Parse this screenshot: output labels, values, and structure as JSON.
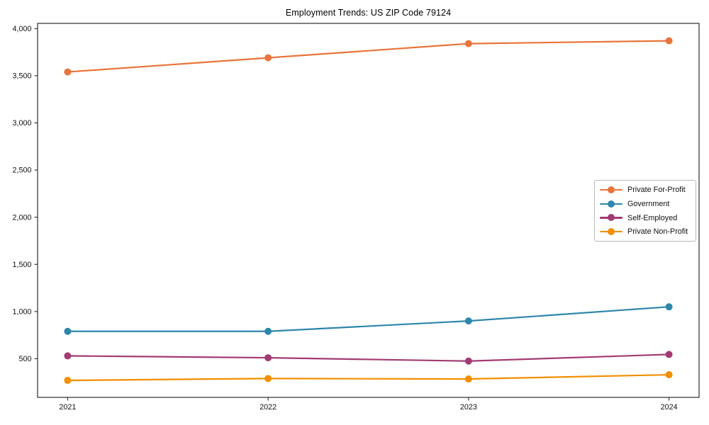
{
  "title": "Employment Trends: US ZIP Code 79124",
  "chart_data": {
    "type": "line",
    "title": "Employment Trends: US ZIP Code 79124",
    "xlabel": "",
    "ylabel": "",
    "x": [
      2021,
      2022,
      2023,
      2024
    ],
    "categories": [
      "2021",
      "2022",
      "2023",
      "2024"
    ],
    "series": [
      {
        "name": "Private For-Profit",
        "color": "#E8743B",
        "values": [
          3540,
          3690,
          3840,
          3870
        ]
      },
      {
        "name": "Government",
        "color": "#2E86AB",
        "values": [
          790,
          790,
          900,
          1050
        ]
      },
      {
        "name": "Self-Employed",
        "color": "#A23B72",
        "values": [
          530,
          510,
          475,
          545
        ]
      },
      {
        "name": "Private Non-Profit",
        "color": "#F18F01",
        "values": [
          270,
          290,
          285,
          330
        ]
      }
    ],
    "xlim": [
      2020.85,
      2024.15
    ],
    "ylim": [
      90,
      4055
    ],
    "y_ticks": [
      {
        "value": 500,
        "label": "500"
      },
      {
        "value": 1000,
        "label": "1,000"
      },
      {
        "value": 1500,
        "label": "1,500"
      },
      {
        "value": 2000,
        "label": "2,000"
      },
      {
        "value": 2500,
        "label": "2,500"
      },
      {
        "value": 3000,
        "label": "3,000"
      },
      {
        "value": 3500,
        "label": "3,500"
      },
      {
        "value": 4000,
        "label": "4,000"
      }
    ],
    "grid": false,
    "legend_position": "right-middle",
    "marker": "circle",
    "frame_color": "#1a1a1a",
    "tick_label_color": "#111111"
  }
}
